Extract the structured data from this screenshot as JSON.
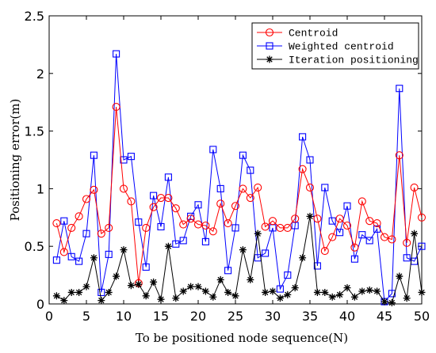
{
  "chart_data": {
    "type": "line",
    "title": "",
    "xlabel": "To be positioned node sequence(N)",
    "ylabel": "Positioning error(m)",
    "xlim": [
      0,
      50
    ],
    "ylim": [
      0,
      2.5
    ],
    "xticks": [
      "0",
      "5",
      "10",
      "15",
      "20",
      "25",
      "30",
      "35",
      "40",
      "45",
      "50"
    ],
    "yticks": [
      "0",
      "0.5",
      "1",
      "1.5",
      "2",
      "2.5"
    ],
    "grid": false,
    "legend_position": "top-right",
    "x": [
      1,
      2,
      3,
      4,
      5,
      6,
      7,
      8,
      9,
      10,
      11,
      12,
      13,
      14,
      15,
      16,
      17,
      18,
      19,
      20,
      21,
      22,
      23,
      24,
      25,
      26,
      27,
      28,
      29,
      30,
      31,
      32,
      33,
      34,
      35,
      36,
      37,
      38,
      39,
      40,
      41,
      42,
      43,
      44,
      45,
      46,
      47,
      48,
      49,
      50
    ],
    "series": [
      {
        "name": "Centroid",
        "color": "#ff0000",
        "marker": "circle",
        "values": [
          0.7,
          0.45,
          0.66,
          0.76,
          0.91,
          0.99,
          0.61,
          0.66,
          1.71,
          1.0,
          0.89,
          0.18,
          0.66,
          0.84,
          0.92,
          0.92,
          0.83,
          0.69,
          0.74,
          0.69,
          0.68,
          0.63,
          0.87,
          0.7,
          0.85,
          1.0,
          0.92,
          1.01,
          0.67,
          0.72,
          0.66,
          0.66,
          0.74,
          1.17,
          1.01,
          0.74,
          0.46,
          0.58,
          0.74,
          0.68,
          0.49,
          0.89,
          0.72,
          0.7,
          0.58,
          0.56,
          1.29,
          0.53,
          1.01,
          0.75
        ]
      },
      {
        "name": "Weighted centroid",
        "color": "#0000ff",
        "marker": "square",
        "values": [
          0.38,
          0.72,
          0.41,
          0.37,
          0.61,
          1.29,
          0.1,
          0.43,
          2.17,
          1.25,
          1.28,
          0.71,
          0.32,
          0.94,
          0.67,
          1.1,
          0.52,
          0.55,
          0.76,
          0.86,
          0.54,
          1.34,
          1.0,
          0.29,
          0.66,
          1.29,
          1.16,
          0.4,
          0.44,
          0.66,
          0.13,
          0.25,
          0.68,
          1.45,
          1.25,
          0.33,
          1.01,
          0.72,
          0.62,
          0.85,
          0.39,
          0.6,
          0.55,
          0.65,
          0.02,
          0.09,
          1.87,
          0.4,
          0.37,
          0.5
        ]
      },
      {
        "name": "Iteration positioning",
        "color": "#000000",
        "marker": "star",
        "values": [
          0.07,
          0.03,
          0.1,
          0.1,
          0.15,
          0.4,
          0.03,
          0.1,
          0.24,
          0.47,
          0.16,
          0.17,
          0.07,
          0.19,
          0.04,
          0.5,
          0.05,
          0.11,
          0.15,
          0.15,
          0.11,
          0.06,
          0.21,
          0.1,
          0.07,
          0.47,
          0.21,
          0.61,
          0.1,
          0.11,
          0.05,
          0.08,
          0.14,
          0.4,
          0.76,
          0.1,
          0.1,
          0.06,
          0.08,
          0.14,
          0.06,
          0.11,
          0.12,
          0.11,
          0.02,
          0.01,
          0.24,
          0.05,
          0.61,
          0.1
        ]
      }
    ]
  }
}
